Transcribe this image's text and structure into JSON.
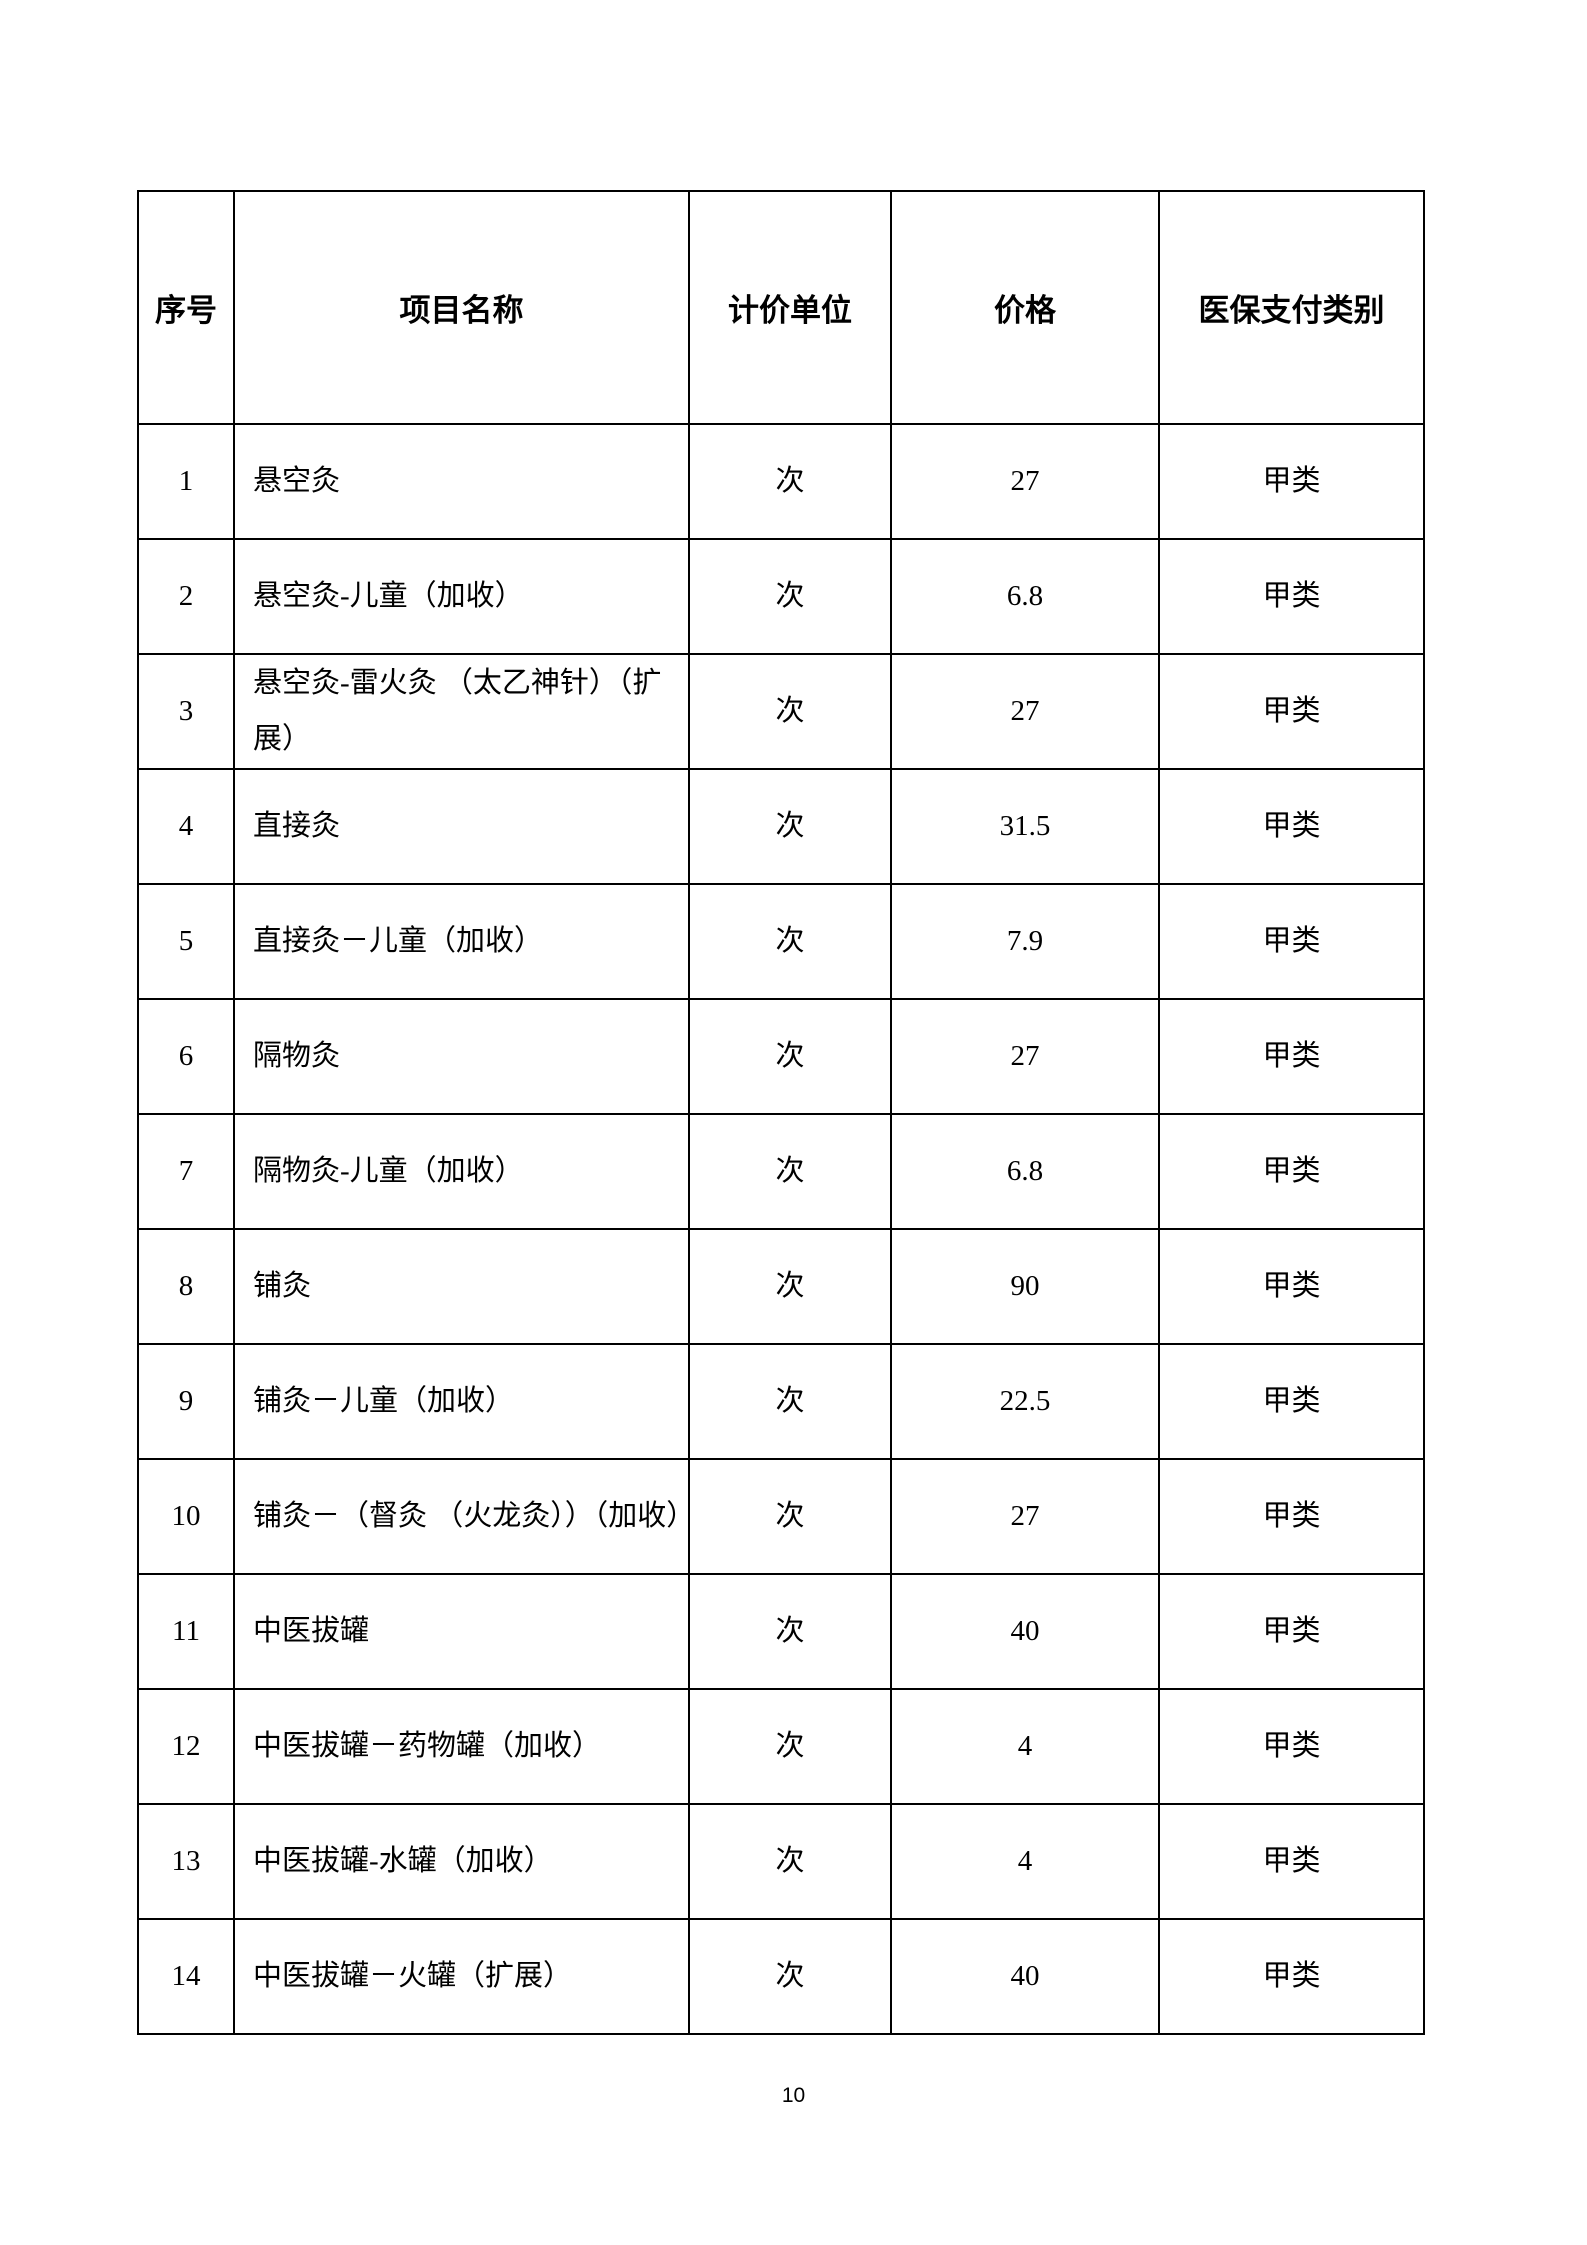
{
  "table": {
    "headers": [
      "序号",
      "项目名称",
      "计价单位",
      "价格",
      "医保支付类别"
    ],
    "rows": [
      {
        "no": "1",
        "name": "悬空灸",
        "unit": "次",
        "price": "27",
        "category": "甲类"
      },
      {
        "no": "2",
        "name": "悬空灸-儿童（加收）",
        "unit": "次",
        "price": "6.8",
        "category": "甲类"
      },
      {
        "no": "3",
        "name": "悬空灸-雷火灸 （太乙神针）（扩展）",
        "unit": "次",
        "price": "27",
        "category": "甲类"
      },
      {
        "no": "4",
        "name": "直接灸",
        "unit": "次",
        "price": "31.5",
        "category": "甲类"
      },
      {
        "no": "5",
        "name": "直接灸－儿童（加收）",
        "unit": "次",
        "price": "7.9",
        "category": "甲类"
      },
      {
        "no": "6",
        "name": "隔物灸",
        "unit": "次",
        "price": "27",
        "category": "甲类"
      },
      {
        "no": "7",
        "name": "隔物灸-儿童（加收）",
        "unit": "次",
        "price": "6.8",
        "category": "甲类"
      },
      {
        "no": "8",
        "name": "铺灸",
        "unit": "次",
        "price": "90",
        "category": "甲类"
      },
      {
        "no": "9",
        "name": "铺灸－儿童（加收）",
        "unit": "次",
        "price": "22.5",
        "category": "甲类"
      },
      {
        "no": "10",
        "name": "铺灸－（督灸 （火龙灸））（加收）",
        "unit": "次",
        "price": "27",
        "category": "甲类"
      },
      {
        "no": "11",
        "name": "中医拔罐",
        "unit": "次",
        "price": "40",
        "category": "甲类"
      },
      {
        "no": "12",
        "name": "中医拔罐－药物罐（加收）",
        "unit": "次",
        "price": "4",
        "category": "甲类"
      },
      {
        "no": "13",
        "name": "中医拔罐-水罐（加收）",
        "unit": "次",
        "price": "4",
        "category": "甲类"
      },
      {
        "no": "14",
        "name": "中医拔罐－火罐（扩展）",
        "unit": "次",
        "price": "40",
        "category": "甲类"
      }
    ]
  },
  "footer": {
    "page_number": "10"
  }
}
